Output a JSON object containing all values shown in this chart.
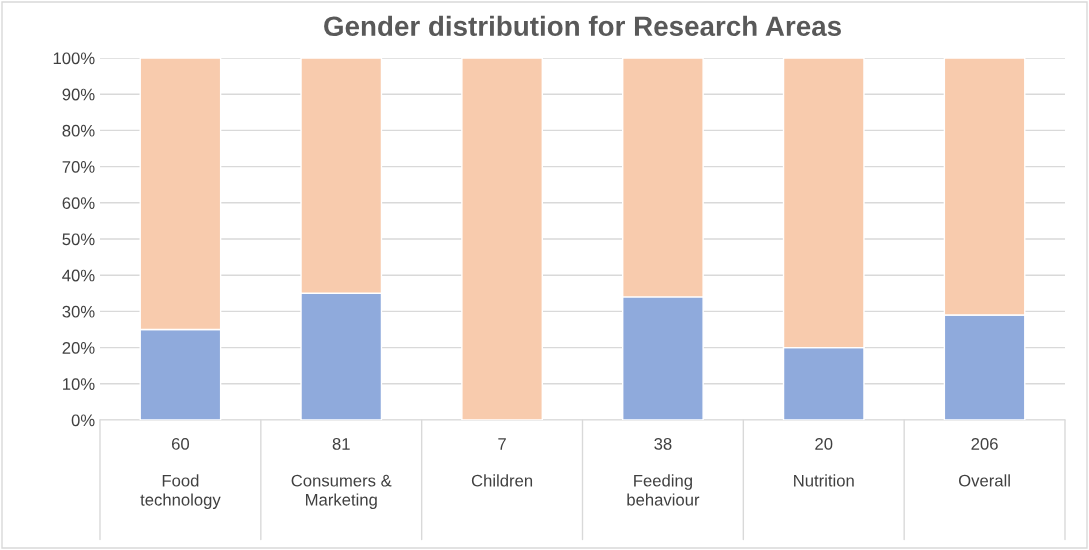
{
  "chart_data": {
    "type": "bar",
    "title": "Gender distribution for Research Areas",
    "categories": [
      "60\nFood technology",
      "81\nConsumers & Marketing",
      "7\nChildren",
      "38\nFeeding behaviour",
      "20\nNutrition",
      "206\nOverall"
    ],
    "stacked": true,
    "series": [
      {
        "color": "#8faadc",
        "values": [
          25,
          35,
          0,
          34,
          20,
          29
        ]
      },
      {
        "color": "#f8cbad",
        "values": [
          75,
          65,
          100,
          66,
          80,
          71
        ]
      }
    ],
    "ylim": [
      0,
      100
    ],
    "yticks": [
      {
        "value": 0,
        "label": "0%"
      },
      {
        "value": 10,
        "label": "10%"
      },
      {
        "value": 20,
        "label": "20%"
      },
      {
        "value": 30,
        "label": "30%"
      },
      {
        "value": 40,
        "label": "40%"
      },
      {
        "value": 50,
        "label": "50%"
      },
      {
        "value": 60,
        "label": "60%"
      },
      {
        "value": 70,
        "label": "70%"
      },
      {
        "value": 80,
        "label": "80%"
      },
      {
        "value": 90,
        "label": "90%"
      },
      {
        "value": 100,
        "label": "100%"
      }
    ],
    "grid": "y"
  }
}
